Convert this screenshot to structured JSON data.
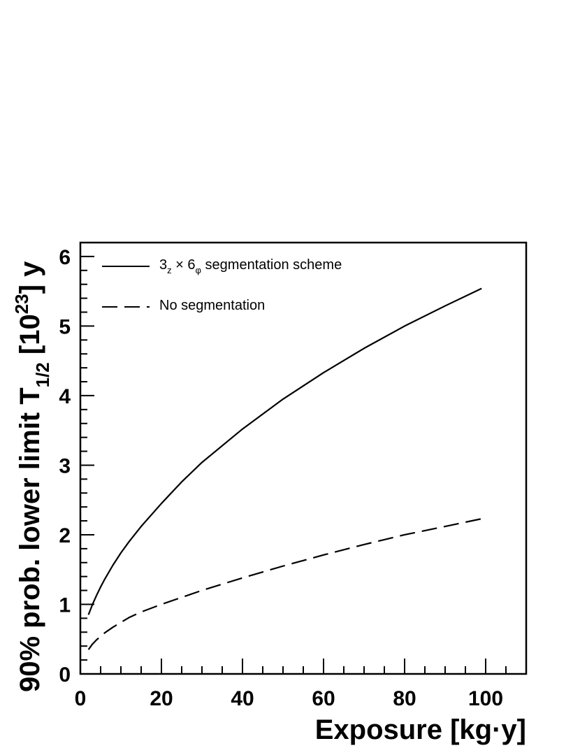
{
  "chart_data": {
    "type": "line",
    "xlabel": "Exposure [kg·y]",
    "ylabel": {
      "prefix": "90% prob. lower limit T",
      "sub": "1/2",
      "mid": " [10",
      "sup": "23",
      "suffix": "] y"
    },
    "xlim": [
      0,
      110
    ],
    "ylim": [
      0,
      6.2
    ],
    "x_major_ticks": [
      0,
      20,
      40,
      60,
      80,
      100
    ],
    "x_minor_step": 5,
    "y_major_ticks": [
      0,
      1,
      2,
      3,
      4,
      5,
      6
    ],
    "y_minor_step": 0.2,
    "legend_placement": "top-left",
    "grid": false,
    "series": [
      {
        "name": "segmentation",
        "legend": {
          "a": "3",
          "a_sub": "z",
          "times": " × 6",
          "b_sub": "φ",
          "rest": " segmentation scheme"
        },
        "style": "solid",
        "color": "#000000",
        "x": [
          2,
          3,
          4,
          5,
          6,
          8,
          10,
          12,
          15,
          20,
          25,
          30,
          40,
          50,
          60,
          70,
          80,
          90,
          99
        ],
        "y": [
          0.85,
          1.0,
          1.13,
          1.25,
          1.36,
          1.56,
          1.74,
          1.9,
          2.12,
          2.45,
          2.76,
          3.04,
          3.52,
          3.95,
          4.33,
          4.68,
          5.0,
          5.29,
          5.54
        ]
      },
      {
        "name": "no-segmentation",
        "legend": {
          "text": "No segmentation"
        },
        "style": "dashed",
        "color": "#000000",
        "x": [
          2,
          3,
          4,
          5,
          6,
          8,
          10,
          12,
          15,
          20,
          25,
          30,
          40,
          50,
          60,
          70,
          80,
          90,
          99
        ],
        "y": [
          0.35,
          0.43,
          0.49,
          0.54,
          0.59,
          0.67,
          0.74,
          0.81,
          0.89,
          1.0,
          1.1,
          1.2,
          1.38,
          1.55,
          1.71,
          1.86,
          2.0,
          2.12,
          2.23
        ]
      }
    ]
  }
}
